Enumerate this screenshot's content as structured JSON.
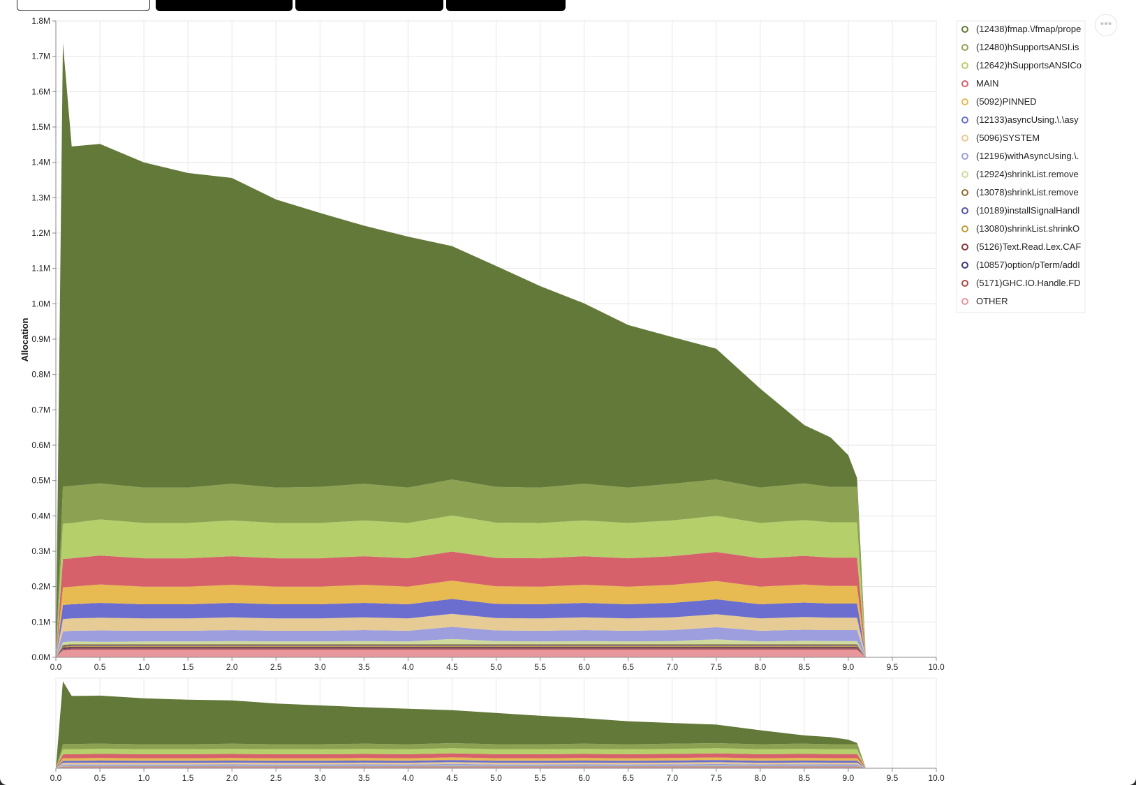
{
  "tabs": [
    {
      "label": "",
      "style": "light"
    },
    {
      "label": "",
      "style": "dark"
    },
    {
      "label": "",
      "style": "dark"
    },
    {
      "label": "",
      "style": "dark"
    }
  ],
  "menu_glyph": "•••",
  "chart_data": {
    "type": "area",
    "stacked": true,
    "title": "",
    "xlabel": "",
    "ylabel": "Allocation",
    "xlim": [
      0,
      10
    ],
    "ylim": [
      0,
      1800000
    ],
    "grid": true,
    "legend_position": "top-right",
    "x_ticks": [
      "0.0",
      "0.5",
      "1.0",
      "1.5",
      "2.0",
      "2.5",
      "3.0",
      "3.5",
      "4.0",
      "4.5",
      "5.0",
      "5.5",
      "6.0",
      "6.5",
      "7.0",
      "7.5",
      "8.0",
      "8.5",
      "9.0",
      "9.5",
      "10.0"
    ],
    "y_ticks": [
      "0.0M",
      "0.1M",
      "0.2M",
      "0.3M",
      "0.4M",
      "0.5M",
      "0.6M",
      "0.7M",
      "0.8M",
      "0.9M",
      "1.0M",
      "1.1M",
      "1.2M",
      "1.3M",
      "1.4M",
      "1.5M",
      "1.6M",
      "1.7M",
      "1.8M"
    ],
    "x": [
      0.0,
      0.08,
      0.18,
      0.5,
      1.0,
      1.5,
      2.0,
      2.5,
      3.0,
      3.5,
      4.0,
      4.5,
      5.0,
      5.5,
      6.0,
      6.5,
      7.0,
      7.5,
      8.0,
      8.5,
      8.8,
      9.0,
      9.1,
      9.2
    ],
    "series": [
      {
        "name": "OTHER",
        "color": "#e7969c",
        "values": [
          0,
          20000,
          22000,
          22000,
          22000,
          22000,
          22000,
          22000,
          22000,
          22000,
          22000,
          22000,
          22000,
          22000,
          22000,
          22000,
          22000,
          22000,
          22000,
          22000,
          22000,
          22000,
          22000,
          0
        ]
      },
      {
        "name": "(5171)GHC.IO.Handle.FD",
        "color": "#ad494a",
        "values": [
          0,
          3000,
          3000,
          3000,
          3000,
          3000,
          3000,
          3000,
          3000,
          3000,
          3000,
          3000,
          3000,
          3000,
          3000,
          3000,
          3000,
          3000,
          3000,
          3000,
          3000,
          3000,
          3000,
          0
        ]
      },
      {
        "name": "(10857)option/pTerm/addI",
        "color": "#393b79",
        "values": [
          0,
          2000,
          2000,
          2000,
          2000,
          2000,
          2000,
          2000,
          2000,
          2000,
          2000,
          2000,
          2000,
          2000,
          2000,
          2000,
          2000,
          2000,
          2000,
          2000,
          2000,
          2000,
          2000,
          0
        ]
      },
      {
        "name": "(5126)Text.Read.Lex.CAF",
        "color": "#843c39",
        "values": [
          0,
          3000,
          3000,
          3000,
          3000,
          3000,
          3000,
          3000,
          3000,
          3000,
          3000,
          3000,
          3000,
          3000,
          3000,
          3000,
          3000,
          3000,
          3000,
          3000,
          3000,
          3000,
          3000,
          0
        ]
      },
      {
        "name": "(13080)shrinkList.shrinkO",
        "color": "#bd9e39",
        "values": [
          0,
          2000,
          2000,
          2000,
          2000,
          2000,
          2000,
          2000,
          2000,
          2000,
          2000,
          2000,
          2000,
          2000,
          2000,
          2000,
          2000,
          2000,
          2000,
          2000,
          2000,
          2000,
          2000,
          0
        ]
      },
      {
        "name": "(10189)installSignalHandl",
        "color": "#5254a3",
        "values": [
          0,
          2000,
          2000,
          2000,
          2000,
          2000,
          2000,
          2000,
          2000,
          2000,
          2000,
          2000,
          2000,
          2000,
          2000,
          2000,
          2000,
          2000,
          2000,
          2000,
          2000,
          2000,
          2000,
          0
        ]
      },
      {
        "name": "(13078)shrinkList.remove",
        "color": "#8c6d31",
        "values": [
          0,
          3000,
          3000,
          3000,
          3000,
          3000,
          3000,
          3000,
          3000,
          3000,
          3000,
          3000,
          3000,
          3000,
          3000,
          3000,
          3000,
          3000,
          3000,
          3000,
          3000,
          3000,
          3000,
          0
        ]
      },
      {
        "name": "(12924)shrinkList.remove",
        "color": "#cedb9c",
        "values": [
          0,
          8000,
          8000,
          7000,
          8000,
          8000,
          9000,
          8000,
          8000,
          9000,
          8000,
          15000,
          9000,
          8000,
          9000,
          8000,
          9000,
          14000,
          8000,
          10000,
          9000,
          9000,
          9000,
          0
        ]
      },
      {
        "name": "(12196)withAsyncUsing.\\.",
        "color": "#9c9ede",
        "values": [
          0,
          30000,
          30000,
          32000,
          30000,
          30000,
          31000,
          30000,
          30000,
          31000,
          30000,
          34000,
          30000,
          30000,
          31000,
          30000,
          31000,
          34000,
          30000,
          31000,
          31000,
          31000,
          31000,
          0
        ]
      },
      {
        "name": "(5096)SYSTEM",
        "color": "#e7cb94",
        "values": [
          0,
          35000,
          35000,
          36000,
          35000,
          35000,
          36000,
          35000,
          35000,
          36000,
          35000,
          37000,
          35000,
          35000,
          36000,
          35000,
          36000,
          37000,
          35000,
          36000,
          35000,
          35000,
          35000,
          0
        ]
      },
      {
        "name": "(12133)asyncUsing.\\.\\asy",
        "color": "#6b6ecf",
        "values": [
          0,
          40000,
          40000,
          42000,
          40000,
          40000,
          41000,
          40000,
          40000,
          41000,
          40000,
          42000,
          40000,
          40000,
          41000,
          40000,
          41000,
          42000,
          40000,
          41000,
          40000,
          40000,
          40000,
          0
        ]
      },
      {
        "name": "(5092)PINNED",
        "color": "#e7ba52",
        "values": [
          0,
          50000,
          50000,
          52000,
          50000,
          50000,
          51000,
          50000,
          50000,
          51000,
          50000,
          52000,
          50000,
          50000,
          51000,
          50000,
          51000,
          52000,
          50000,
          51000,
          50000,
          50000,
          50000,
          0
        ]
      },
      {
        "name": "MAIN",
        "color": "#d6616b",
        "values": [
          0,
          80000,
          80000,
          82000,
          80000,
          80000,
          81000,
          80000,
          80000,
          81000,
          80000,
          82000,
          80000,
          80000,
          81000,
          80000,
          81000,
          82000,
          80000,
          81000,
          80000,
          80000,
          80000,
          0
        ]
      },
      {
        "name": "(12642)hSupportsANSICo",
        "color": "#b5cf6b",
        "values": [
          0,
          100000,
          100000,
          102000,
          100000,
          100000,
          101000,
          100000,
          100000,
          101000,
          100000,
          102000,
          100000,
          100000,
          101000,
          100000,
          101000,
          102000,
          100000,
          101000,
          100000,
          100000,
          100000,
          0
        ]
      },
      {
        "name": "(12480)hSupportsANSI.is",
        "color": "#8ca252",
        "values": [
          0,
          105000,
          105000,
          102000,
          100000,
          100000,
          104000,
          100000,
          102000,
          104000,
          100000,
          102000,
          101000,
          100000,
          104000,
          100000,
          104000,
          103000,
          100000,
          104000,
          100000,
          100000,
          100000,
          0
        ]
      },
      {
        "name": "(12438)fmap.\\/fmap/prope",
        "color": "#637939",
        "values": [
          0,
          1255000,
          960000,
          960000,
          920000,
          890000,
          865000,
          815000,
          775000,
          730000,
          710000,
          660000,
          625000,
          570000,
          510000,
          460000,
          415000,
          370000,
          280000,
          165000,
          140000,
          90000,
          25000,
          0
        ]
      }
    ]
  }
}
